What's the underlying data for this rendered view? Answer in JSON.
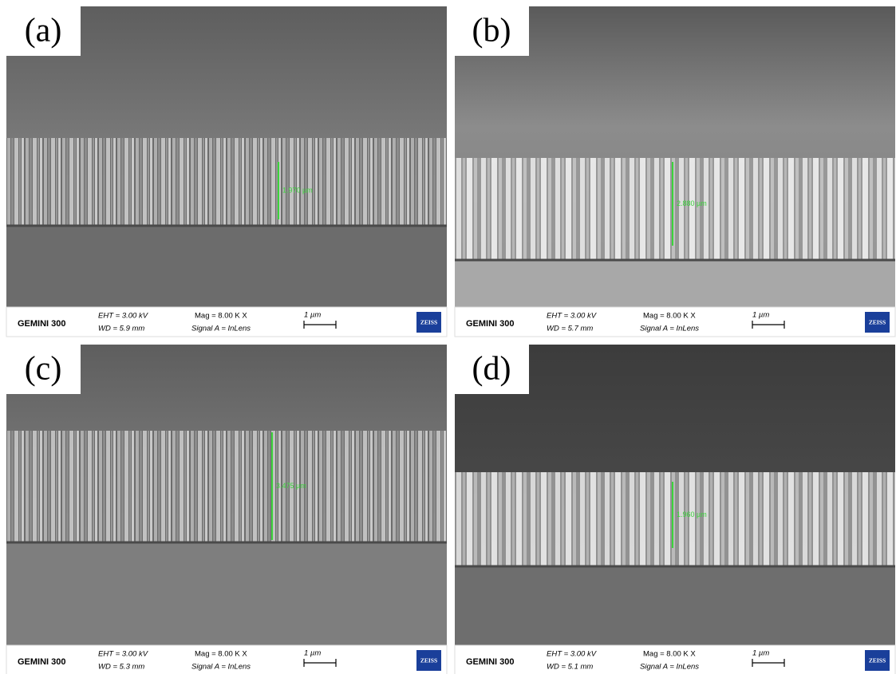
{
  "panels": [
    {
      "label": "(a)",
      "measurement": "1.970 µm",
      "info": {
        "instrument": "GEMINI 300",
        "eht": "EHT =  3.00 kV",
        "wd": "WD =  5.9 mm",
        "mag": "Mag =   8.00 K X",
        "signal": "Signal A = InLens",
        "scale": "1 µm",
        "brand": "ZEISS"
      }
    },
    {
      "label": "(b)",
      "measurement": "2.880 µm",
      "info": {
        "instrument": "GEMINI 300",
        "eht": "EHT =  3.00 kV",
        "wd": "WD =  5.7 mm",
        "mag": "Mag =   8.00 K X",
        "signal": "Signal A = InLens",
        "scale": "1 µm",
        "brand": "ZEISS"
      }
    },
    {
      "label": "(c)",
      "measurement": "3.475 µm",
      "info": {
        "instrument": "GEMINI 300",
        "eht": "EHT =  3.00 kV",
        "wd": "WD =  5.3 mm",
        "mag": "Mag =   8.00 K X",
        "signal": "Signal A = InLens",
        "scale": "1 µm",
        "brand": "ZEISS"
      }
    },
    {
      "label": "(d)",
      "measurement": "1.960 µm",
      "info": {
        "instrument": "GEMINI 300",
        "eht": "EHT =  3.00 kV",
        "wd": "WD =  5.1 mm",
        "mag": "Mag =   8.00 K X",
        "signal": "Signal A = InLens",
        "scale": "1 µm",
        "brand": "ZEISS"
      }
    }
  ]
}
